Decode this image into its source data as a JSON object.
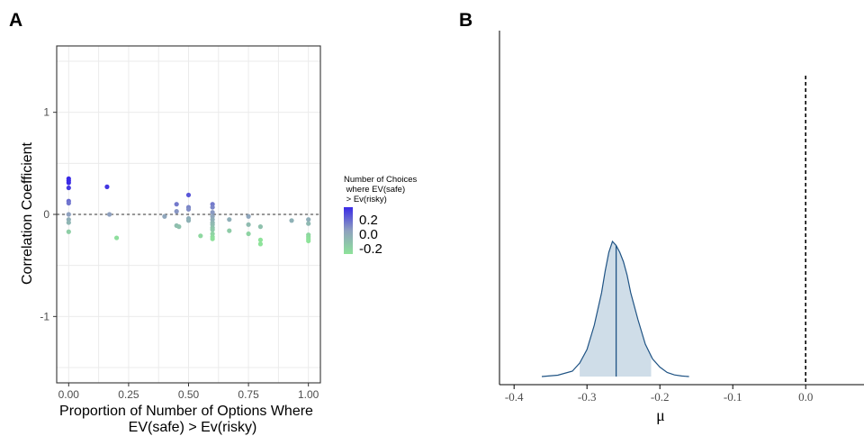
{
  "panels": {
    "a_label": "A",
    "b_label": "B"
  },
  "chart_data": [
    {
      "type": "scatter",
      "panel": "A",
      "xlabel_line1": "Proportion of Number of Options Where",
      "xlabel_line2": "EV(safe) > Ev(risky)",
      "ylabel": "Correlation Coefficient",
      "xlim": [
        -0.05,
        1.05
      ],
      "ylim": [
        -1.65,
        1.65
      ],
      "x_ticks": [
        0,
        0.25,
        0.5,
        0.75,
        1.0
      ],
      "x_tick_labels": [
        "0.00",
        "0.25",
        "0.50",
        "0.75",
        "1.00"
      ],
      "y_ticks": [
        1,
        0,
        -1
      ],
      "y_tick_labels": [
        "1",
        "0",
        "-1"
      ],
      "grid": true,
      "reference_line": {
        "y": 0,
        "style": "dashed"
      },
      "legend": {
        "title_lines": [
          "Number of Choices",
          " where EV(safe)",
          " > Ev(risky)"
        ],
        "labels": [
          "0.2",
          "0.0",
          "-0.2"
        ],
        "values": [
          0.2,
          0.0,
          -0.2
        ],
        "color_high": "#3a2ae6",
        "color_mid": "#8fa1bf",
        "color_low": "#8ee39a",
        "placement": "right"
      },
      "points": [
        {
          "x": 0.0,
          "y": 0.35
        },
        {
          "x": 0.0,
          "y": 0.33
        },
        {
          "x": 0.0,
          "y": 0.31
        },
        {
          "x": 0.0,
          "y": 0.26
        },
        {
          "x": 0.0,
          "y": 0.13
        },
        {
          "x": 0.0,
          "y": 0.11
        },
        {
          "x": 0.0,
          "y": 0.0
        },
        {
          "x": 0.0,
          "y": -0.05
        },
        {
          "x": 0.0,
          "y": -0.08
        },
        {
          "x": 0.0,
          "y": -0.17
        },
        {
          "x": 0.16,
          "y": 0.27
        },
        {
          "x": 0.17,
          "y": 0.0
        },
        {
          "x": 0.2,
          "y": -0.23
        },
        {
          "x": 0.4,
          "y": -0.02
        },
        {
          "x": 0.45,
          "y": 0.1
        },
        {
          "x": 0.45,
          "y": 0.03
        },
        {
          "x": 0.45,
          "y": -0.11
        },
        {
          "x": 0.46,
          "y": -0.12
        },
        {
          "x": 0.5,
          "y": 0.19
        },
        {
          "x": 0.5,
          "y": 0.07
        },
        {
          "x": 0.5,
          "y": 0.05
        },
        {
          "x": 0.5,
          "y": -0.04
        },
        {
          "x": 0.5,
          "y": -0.06
        },
        {
          "x": 0.55,
          "y": -0.21
        },
        {
          "x": 0.6,
          "y": 0.1
        },
        {
          "x": 0.6,
          "y": 0.07
        },
        {
          "x": 0.6,
          "y": 0.02
        },
        {
          "x": 0.6,
          "y": -0.02
        },
        {
          "x": 0.6,
          "y": -0.05
        },
        {
          "x": 0.6,
          "y": -0.08
        },
        {
          "x": 0.6,
          "y": -0.1
        },
        {
          "x": 0.6,
          "y": -0.13
        },
        {
          "x": 0.6,
          "y": -0.15
        },
        {
          "x": 0.6,
          "y": -0.19
        },
        {
          "x": 0.6,
          "y": -0.22
        },
        {
          "x": 0.6,
          "y": -0.24
        },
        {
          "x": 0.67,
          "y": -0.05
        },
        {
          "x": 0.67,
          "y": -0.16
        },
        {
          "x": 0.75,
          "y": -0.02
        },
        {
          "x": 0.75,
          "y": -0.1
        },
        {
          "x": 0.75,
          "y": -0.19
        },
        {
          "x": 0.8,
          "y": -0.12
        },
        {
          "x": 0.8,
          "y": -0.25
        },
        {
          "x": 0.8,
          "y": -0.29
        },
        {
          "x": 0.93,
          "y": -0.06
        },
        {
          "x": 1.0,
          "y": -0.05
        },
        {
          "x": 1.0,
          "y": -0.09
        },
        {
          "x": 1.0,
          "y": -0.2
        },
        {
          "x": 1.0,
          "y": -0.22
        },
        {
          "x": 1.0,
          "y": -0.24
        },
        {
          "x": 1.0,
          "y": -0.26
        }
      ]
    },
    {
      "type": "area",
      "panel": "B",
      "xlabel": "μ",
      "xlim": [
        -0.42,
        0.08
      ],
      "x_ticks": [
        -0.4,
        -0.3,
        -0.2,
        -0.1,
        0.0
      ],
      "x_tick_labels": [
        "-0.4",
        "-0.3",
        "-0.2",
        "-0.1",
        "0.0"
      ],
      "density": {
        "x": [
          -0.362,
          -0.34,
          -0.32,
          -0.31,
          -0.3,
          -0.29,
          -0.28,
          -0.275,
          -0.27,
          -0.265,
          -0.26,
          -0.255,
          -0.25,
          -0.245,
          -0.24,
          -0.23,
          -0.22,
          -0.21,
          -0.2,
          -0.19,
          -0.18,
          -0.17,
          -0.16
        ],
        "y": [
          0.0,
          0.01,
          0.04,
          0.1,
          0.2,
          0.38,
          0.62,
          0.78,
          0.92,
          1.0,
          0.97,
          0.92,
          0.85,
          0.75,
          0.62,
          0.42,
          0.24,
          0.13,
          0.07,
          0.03,
          0.012,
          0.004,
          0.0
        ]
      },
      "interval": [
        -0.31,
        -0.212
      ],
      "median": -0.26,
      "reference_line": {
        "x": 0.0,
        "style": "dashed"
      },
      "fill_color": "#cfdde8",
      "line_color": "#1f5384"
    }
  ]
}
